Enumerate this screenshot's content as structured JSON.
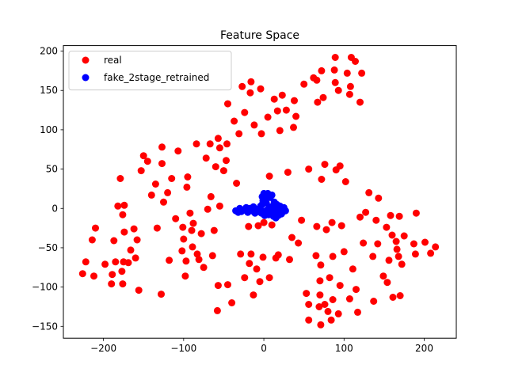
{
  "chart_data": {
    "type": "scatter",
    "title": "Feature Space",
    "xlabel": "",
    "ylabel": "",
    "xlim": [
      -250,
      240
    ],
    "ylim": [
      -165,
      207
    ],
    "xticks": [
      -200,
      -100,
      0,
      100,
      200
    ],
    "yticks": [
      -150,
      -100,
      -50,
      0,
      50,
      100,
      150,
      200
    ],
    "grid": false,
    "legend_position": "top-left",
    "series": [
      {
        "name": "real",
        "color": "#ff0000",
        "points": [
          [
            -226,
            -83
          ],
          [
            -222,
            -68
          ],
          [
            -212,
            -86
          ],
          [
            -214,
            -40
          ],
          [
            -210,
            -25
          ],
          [
            -198,
            -71
          ],
          [
            -190,
            -96
          ],
          [
            -189,
            -84
          ],
          [
            -187,
            -41
          ],
          [
            -185,
            -68
          ],
          [
            -182,
            3
          ],
          [
            -179,
            38
          ],
          [
            -177,
            -80
          ],
          [
            -176,
            -96
          ],
          [
            -176,
            -8
          ],
          [
            -175,
            -68
          ],
          [
            -174,
            4
          ],
          [
            -174,
            -30
          ],
          [
            -169,
            -69
          ],
          [
            -166,
            -53
          ],
          [
            -162,
            -26
          ],
          [
            -160,
            -63
          ],
          [
            -158,
            -40
          ],
          [
            -156,
            -104
          ],
          [
            -153,
            48
          ],
          [
            -150,
            67
          ],
          [
            -145,
            60
          ],
          [
            -140,
            17
          ],
          [
            -135,
            31
          ],
          [
            -133,
            -25
          ],
          [
            -128,
            -109
          ],
          [
            -127,
            78
          ],
          [
            -127,
            57
          ],
          [
            -125,
            8
          ],
          [
            -120,
            20
          ],
          [
            -118,
            -66
          ],
          [
            -115,
            38
          ],
          [
            -110,
            -13
          ],
          [
            -107,
            73
          ],
          [
            -102,
            -54
          ],
          [
            -101,
            -24
          ],
          [
            -100,
            -39
          ],
          [
            -98,
            -86
          ],
          [
            -97,
            -67
          ],
          [
            -96,
            27
          ],
          [
            -95,
            40
          ],
          [
            -92,
            -6
          ],
          [
            -90,
            -28
          ],
          [
            -89,
            -49
          ],
          [
            -88,
            -19
          ],
          [
            -84,
            82
          ],
          [
            -83,
            -58
          ],
          [
            -81,
            -65
          ],
          [
            -78,
            -32
          ],
          [
            -75,
            -75
          ],
          [
            -72,
            64
          ],
          [
            -70,
            -1
          ],
          [
            -67,
            82
          ],
          [
            -66,
            15
          ],
          [
            -64,
            -60
          ],
          [
            -62,
            -28
          ],
          [
            -60,
            53
          ],
          [
            -58,
            -130
          ],
          [
            -57,
            -98
          ],
          [
            -57,
            89
          ],
          [
            -55,
            77
          ],
          [
            -55,
            3
          ],
          [
            -50,
            48
          ],
          [
            -47,
            61
          ],
          [
            -46,
            82
          ],
          [
            -45,
            133
          ],
          [
            -45,
            -97
          ],
          [
            -40,
            -120
          ],
          [
            -37,
            111
          ],
          [
            -34,
            32
          ],
          [
            -31,
            95
          ],
          [
            -29,
            -58
          ],
          [
            -27,
            155
          ],
          [
            -24,
            122
          ],
          [
            -24,
            -88
          ],
          [
            -19,
            -23
          ],
          [
            -18,
            -70
          ],
          [
            -17,
            147
          ],
          [
            -16,
            -58
          ],
          [
            -16,
            161
          ],
          [
            -13,
            -110
          ],
          [
            -12,
            106
          ],
          [
            -9,
            -77
          ],
          [
            -7,
            -22
          ],
          [
            -5,
            -93
          ],
          [
            -4,
            152
          ],
          [
            -3,
            95
          ],
          [
            -1,
            -62
          ],
          [
            0,
            -18
          ],
          [
            5,
            116
          ],
          [
            7,
            41
          ],
          [
            7,
            -88
          ],
          [
            10,
            -21
          ],
          [
            13,
            139
          ],
          [
            15,
            -63
          ],
          [
            17,
            124
          ],
          [
            18,
            -59
          ],
          [
            20,
            99
          ],
          [
            23,
            144
          ],
          [
            28,
            125
          ],
          [
            30,
            46
          ],
          [
            32,
            -65
          ],
          [
            35,
            -37
          ],
          [
            37,
            103
          ],
          [
            38,
            137
          ],
          [
            40,
            117
          ],
          [
            43,
            -44
          ],
          [
            47,
            -15
          ],
          [
            50,
            158
          ],
          [
            53,
            -108
          ],
          [
            56,
            -122
          ],
          [
            56,
            -142
          ],
          [
            56,
            50
          ],
          [
            62,
            166
          ],
          [
            65,
            -60
          ],
          [
            66,
            163
          ],
          [
            66,
            -23
          ],
          [
            67,
            135
          ],
          [
            69,
            -125
          ],
          [
            70,
            -110
          ],
          [
            70,
            -92
          ],
          [
            71,
            -148
          ],
          [
            71,
            -72
          ],
          [
            72,
            37
          ],
          [
            72,
            175
          ],
          [
            74,
            141
          ],
          [
            76,
            -122
          ],
          [
            76,
            56
          ],
          [
            78,
            -27
          ],
          [
            80,
            -131
          ],
          [
            82,
            -88
          ],
          [
            84,
            -142
          ],
          [
            85,
            -18
          ],
          [
            86,
            -61
          ],
          [
            86,
            -116
          ],
          [
            88,
            176
          ],
          [
            89,
            160
          ],
          [
            89,
            192
          ],
          [
            90,
            49
          ],
          [
            93,
            -134
          ],
          [
            93,
            150
          ],
          [
            95,
            54
          ],
          [
            95,
            -98
          ],
          [
            97,
            -22
          ],
          [
            100,
            -55
          ],
          [
            102,
            34
          ],
          [
            104,
            172
          ],
          [
            107,
            -115
          ],
          [
            107,
            145
          ],
          [
            108,
            155
          ],
          [
            109,
            192
          ],
          [
            111,
            -77
          ],
          [
            114,
            187
          ],
          [
            115,
            -103
          ],
          [
            117,
            -132
          ],
          [
            120,
            135
          ],
          [
            120,
            -11
          ],
          [
            122,
            172
          ],
          [
            124,
            -44
          ],
          [
            127,
            -5
          ],
          [
            131,
            20
          ],
          [
            136,
            -61
          ],
          [
            137,
            -118
          ],
          [
            140,
            -15
          ],
          [
            142,
            -45
          ],
          [
            143,
            13
          ],
          [
            149,
            -86
          ],
          [
            153,
            -24
          ],
          [
            154,
            -94
          ],
          [
            156,
            -66
          ],
          [
            158,
            -9
          ],
          [
            160,
            -34
          ],
          [
            161,
            -113
          ],
          [
            165,
            -42
          ],
          [
            166,
            -52
          ],
          [
            168,
            -61
          ],
          [
            169,
            -10
          ],
          [
            170,
            -111
          ],
          [
            172,
            -71
          ],
          [
            175,
            -35
          ],
          [
            187,
            -45
          ],
          [
            189,
            -58
          ],
          [
            190,
            -6
          ],
          [
            201,
            -43
          ],
          [
            208,
            -57
          ],
          [
            214,
            -49
          ]
        ]
      },
      {
        "name": "fake_2stage_retrained",
        "color": "#0000ff",
        "points": [
          [
            -35,
            -3
          ],
          [
            -32,
            -5
          ],
          [
            -30,
            0
          ],
          [
            -28,
            -4
          ],
          [
            -25,
            -2
          ],
          [
            -22,
            1
          ],
          [
            -20,
            -5
          ],
          [
            -18,
            0
          ],
          [
            -15,
            -3
          ],
          [
            -13,
            2
          ],
          [
            -11,
            -6
          ],
          [
            -8,
            -1
          ],
          [
            -7,
            -4
          ],
          [
            -5,
            -2
          ],
          [
            -4,
            3
          ],
          [
            -3,
            -6
          ],
          [
            -2,
            15
          ],
          [
            -2,
            5
          ],
          [
            -1,
            10
          ],
          [
            0,
            -4
          ],
          [
            0,
            19
          ],
          [
            1,
            -9
          ],
          [
            2,
            13
          ],
          [
            3,
            7
          ],
          [
            4,
            -2
          ],
          [
            5,
            19
          ],
          [
            6,
            -8
          ],
          [
            7,
            2
          ],
          [
            8,
            14
          ],
          [
            9,
            -5
          ],
          [
            10,
            17
          ],
          [
            11,
            3
          ],
          [
            12,
            -10
          ],
          [
            13,
            8
          ],
          [
            14,
            -3
          ],
          [
            15,
            -12
          ],
          [
            16,
            5
          ],
          [
            17,
            -6
          ],
          [
            18,
            -9
          ],
          [
            19,
            -1
          ],
          [
            20,
            3
          ],
          [
            22,
            -7
          ],
          [
            24,
            -4
          ],
          [
            25,
            1
          ],
          [
            27,
            -3
          ]
        ]
      }
    ]
  }
}
